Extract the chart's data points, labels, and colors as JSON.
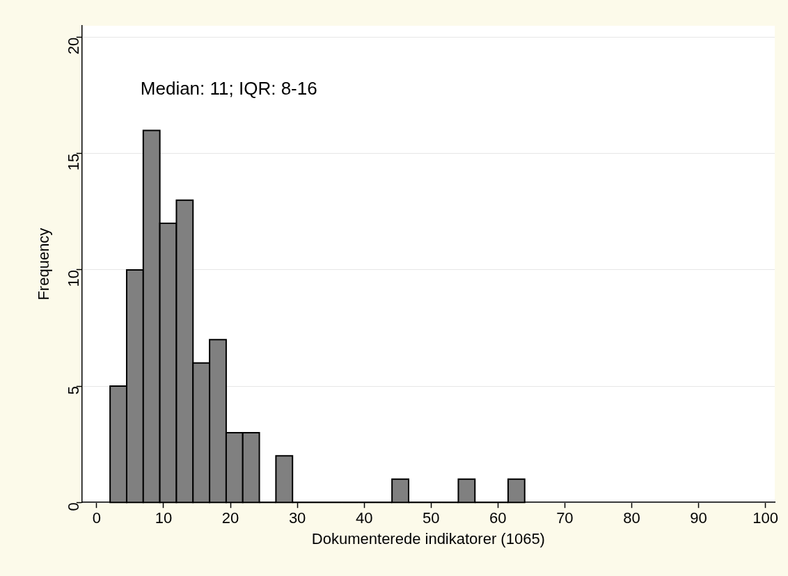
{
  "chart_data": {
    "type": "histogram",
    "xlabel": "Dokumenterede indikatorer (1065)",
    "ylabel": "Frequency",
    "annotations": [
      "Median: 11; IQR: 8-16"
    ],
    "bins": [
      2,
      4.48,
      6.96,
      9.44,
      11.92,
      14.4,
      16.88,
      19.36,
      21.84,
      24.32,
      26.8,
      29.28,
      31.76,
      34.24,
      36.72,
      39.2,
      41.68,
      44.16,
      46.64,
      49.12,
      51.6,
      54.08,
      56.56,
      59.04,
      61.52,
      64
    ],
    "values": [
      5,
      10,
      16,
      12,
      13,
      6,
      7,
      3,
      3,
      0,
      2,
      0,
      0,
      0,
      0,
      0,
      0,
      1,
      0,
      0,
      0,
      1,
      0,
      0,
      1
    ],
    "color": "#808080",
    "xlim": [
      -2.2,
      101.4
    ],
    "xticks": [
      0,
      10,
      20,
      30,
      40,
      50,
      60,
      70,
      80,
      90,
      100
    ],
    "ylim": [
      0,
      20.5
    ],
    "yticks": [
      0,
      5,
      10,
      15,
      20
    ],
    "grid": "y",
    "legend": false
  }
}
